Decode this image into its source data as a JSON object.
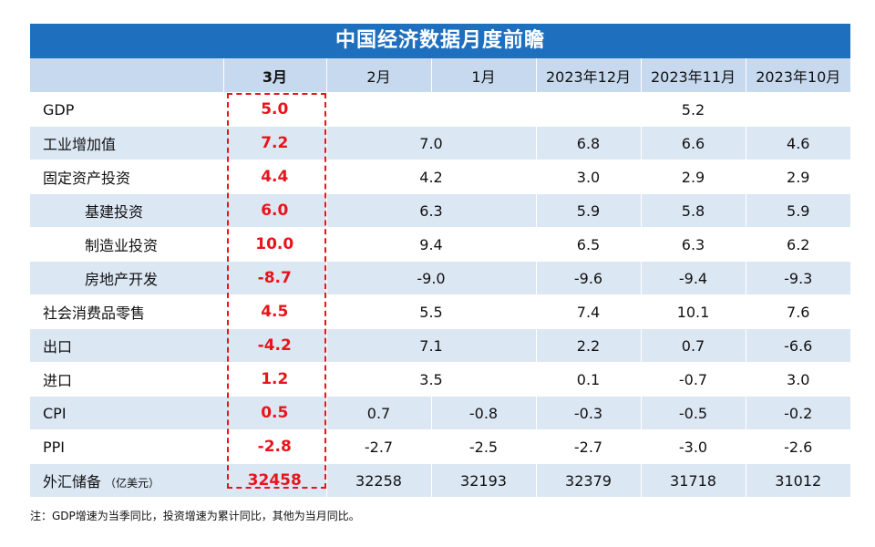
{
  "title": "中国经济数据月度前瞻",
  "headers": [
    "",
    "3月",
    "2月",
    "1月",
    "2023年12月",
    "2023年11月",
    "2023年10月"
  ],
  "rows": [
    {
      "label": "GDP",
      "sub": false,
      "current": "5.0",
      "cells": [
        {
          "v": "",
          "span": 3
        },
        {
          "v": "5.2",
          "span": 1
        },
        {
          "v": "",
          "span": 1
        }
      ]
    },
    {
      "label": "工业增加值",
      "sub": false,
      "current": "7.2",
      "cells": [
        {
          "v": "7.0",
          "span": 2
        },
        {
          "v": "6.8",
          "span": 1
        },
        {
          "v": "6.6",
          "span": 1
        },
        {
          "v": "4.6",
          "span": 1
        }
      ]
    },
    {
      "label": "固定资产投资",
      "sub": false,
      "current": "4.4",
      "cells": [
        {
          "v": "4.2",
          "span": 2
        },
        {
          "v": "3.0",
          "span": 1
        },
        {
          "v": "2.9",
          "span": 1
        },
        {
          "v": "2.9",
          "span": 1
        }
      ]
    },
    {
      "label": "基建投资",
      "sub": true,
      "current": "6.0",
      "cells": [
        {
          "v": "6.3",
          "span": 2
        },
        {
          "v": "5.9",
          "span": 1
        },
        {
          "v": "5.8",
          "span": 1
        },
        {
          "v": "5.9",
          "span": 1
        }
      ]
    },
    {
      "label": "制造业投资",
      "sub": true,
      "current": "10.0",
      "cells": [
        {
          "v": "9.4",
          "span": 2
        },
        {
          "v": "6.5",
          "span": 1
        },
        {
          "v": "6.3",
          "span": 1
        },
        {
          "v": "6.2",
          "span": 1
        }
      ]
    },
    {
      "label": "房地产开发",
      "sub": true,
      "current": "-8.7",
      "cells": [
        {
          "v": "-9.0",
          "span": 2
        },
        {
          "v": "-9.6",
          "span": 1
        },
        {
          "v": "-9.4",
          "span": 1
        },
        {
          "v": "-9.3",
          "span": 1
        }
      ]
    },
    {
      "label": "社会消费品零售",
      "sub": false,
      "current": "4.5",
      "cells": [
        {
          "v": "5.5",
          "span": 2
        },
        {
          "v": "7.4",
          "span": 1
        },
        {
          "v": "10.1",
          "span": 1
        },
        {
          "v": "7.6",
          "span": 1
        }
      ]
    },
    {
      "label": "出口",
      "sub": false,
      "current": "-4.2",
      "cells": [
        {
          "v": "7.1",
          "span": 2
        },
        {
          "v": "2.2",
          "span": 1
        },
        {
          "v": "0.7",
          "span": 1
        },
        {
          "v": "-6.6",
          "span": 1
        }
      ]
    },
    {
      "label": "进口",
      "sub": false,
      "current": "1.2",
      "cells": [
        {
          "v": "3.5",
          "span": 2
        },
        {
          "v": "0.1",
          "span": 1
        },
        {
          "v": "-0.7",
          "span": 1
        },
        {
          "v": "3.0",
          "span": 1
        }
      ]
    },
    {
      "label": "CPI",
      "sub": false,
      "current": "0.5",
      "cells": [
        {
          "v": "0.7",
          "span": 1
        },
        {
          "v": "-0.8",
          "span": 1
        },
        {
          "v": "-0.3",
          "span": 1
        },
        {
          "v": "-0.5",
          "span": 1
        },
        {
          "v": "-0.2",
          "span": 1
        }
      ]
    },
    {
      "label": "PPI",
      "sub": false,
      "current": "-2.8",
      "cells": [
        {
          "v": "-2.7",
          "span": 1
        },
        {
          "v": "-2.5",
          "span": 1
        },
        {
          "v": "-2.7",
          "span": 1
        },
        {
          "v": "-3.0",
          "span": 1
        },
        {
          "v": "-2.6",
          "span": 1
        }
      ]
    },
    {
      "label": "外汇储备",
      "unit": "（亿美元）",
      "sub": false,
      "current": "32458",
      "cells": [
        {
          "v": "32258",
          "span": 1
        },
        {
          "v": "32193",
          "span": 1
        },
        {
          "v": "32379",
          "span": 1
        },
        {
          "v": "31718",
          "span": 1
        },
        {
          "v": "31012",
          "span": 1
        }
      ]
    }
  ],
  "note": "注：GDP增速为当季同比，投资增速为累计同比，其他为当月同比。",
  "colors": {
    "header_bar": "#1f6fbf",
    "header_row": "#c7d9ee",
    "stripe": "#dce7f4",
    "highlight": "#e8141b"
  }
}
